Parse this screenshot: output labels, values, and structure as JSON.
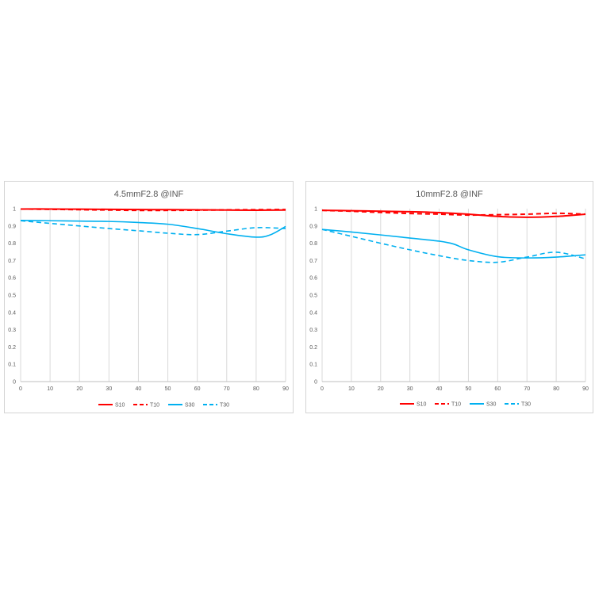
{
  "chart_data": [
    {
      "type": "line",
      "title": "4.5mmF2.8 @INF",
      "xlabel": "",
      "ylabel": "",
      "xlim": [
        0,
        90
      ],
      "ylim": [
        0,
        1
      ],
      "xticks": [
        "0",
        "10",
        "20",
        "30",
        "40",
        "50",
        "60",
        "70",
        "80",
        "90"
      ],
      "yticks": [
        "0",
        "0.1",
        "0.2",
        "0.3",
        "0.4",
        "0.5",
        "0.6",
        "0.7",
        "0.8",
        "0.9",
        "1"
      ],
      "grid": "vertical",
      "legend": "bottom",
      "series": [
        {
          "name": "S10",
          "color": "#ff0000",
          "dash": "solid",
          "x": [
            0,
            10,
            20,
            30,
            40,
            50,
            60,
            70,
            80,
            90
          ],
          "y": [
            0.998,
            0.998,
            0.997,
            0.996,
            0.995,
            0.994,
            0.993,
            0.992,
            0.991,
            0.992
          ]
        },
        {
          "name": "T10",
          "color": "#ff0000",
          "dash": "dashed",
          "x": [
            0,
            10,
            20,
            30,
            40,
            50,
            60,
            70,
            80,
            90
          ],
          "y": [
            0.998,
            0.996,
            0.994,
            0.992,
            0.99,
            0.99,
            0.991,
            0.993,
            0.994,
            0.995
          ]
        },
        {
          "name": "S30",
          "color": "#00b0f0",
          "dash": "solid",
          "x": [
            0,
            10,
            20,
            30,
            40,
            50,
            60,
            70,
            80,
            85,
            90
          ],
          "y": [
            0.932,
            0.93,
            0.928,
            0.926,
            0.92,
            0.91,
            0.885,
            0.855,
            0.835,
            0.85,
            0.897
          ]
        },
        {
          "name": "T30",
          "color": "#00b0f0",
          "dash": "dashed",
          "x": [
            0,
            10,
            20,
            30,
            40,
            50,
            60,
            70,
            80,
            90
          ],
          "y": [
            0.93,
            0.915,
            0.9,
            0.885,
            0.872,
            0.858,
            0.85,
            0.87,
            0.89,
            0.885
          ]
        }
      ]
    },
    {
      "type": "line",
      "title": "10mmF2.8 @INF",
      "xlabel": "",
      "ylabel": "",
      "xlim": [
        0,
        90
      ],
      "ylim": [
        0,
        1
      ],
      "xticks": [
        "0",
        "10",
        "20",
        "30",
        "40",
        "50",
        "60",
        "70",
        "80",
        "90"
      ],
      "yticks": [
        "0",
        "0.1",
        "0.2",
        "0.3",
        "0.4",
        "0.5",
        "0.6",
        "0.7",
        "0.8",
        "0.9",
        "1"
      ],
      "grid": "vertical",
      "legend": "bottom",
      "series": [
        {
          "name": "S10",
          "color": "#ff0000",
          "dash": "solid",
          "x": [
            0,
            10,
            20,
            30,
            40,
            50,
            60,
            70,
            80,
            90
          ],
          "y": [
            0.99,
            0.988,
            0.985,
            0.982,
            0.977,
            0.968,
            0.955,
            0.95,
            0.955,
            0.968
          ]
        },
        {
          "name": "T10",
          "color": "#ff0000",
          "dash": "dashed",
          "x": [
            0,
            10,
            20,
            30,
            40,
            50,
            60,
            70,
            80,
            90
          ],
          "y": [
            0.99,
            0.985,
            0.978,
            0.972,
            0.968,
            0.963,
            0.965,
            0.968,
            0.973,
            0.968
          ]
        },
        {
          "name": "S30",
          "color": "#00b0f0",
          "dash": "solid",
          "x": [
            0,
            10,
            20,
            30,
            40,
            45,
            50,
            60,
            70,
            80,
            90
          ],
          "y": [
            0.88,
            0.865,
            0.848,
            0.83,
            0.812,
            0.795,
            0.762,
            0.722,
            0.715,
            0.72,
            0.733
          ]
        },
        {
          "name": "T30",
          "color": "#00b0f0",
          "dash": "dashed",
          "x": [
            0,
            10,
            20,
            30,
            40,
            50,
            60,
            70,
            80,
            90
          ],
          "y": [
            0.88,
            0.84,
            0.8,
            0.762,
            0.728,
            0.7,
            0.69,
            0.72,
            0.748,
            0.71
          ]
        }
      ]
    }
  ]
}
